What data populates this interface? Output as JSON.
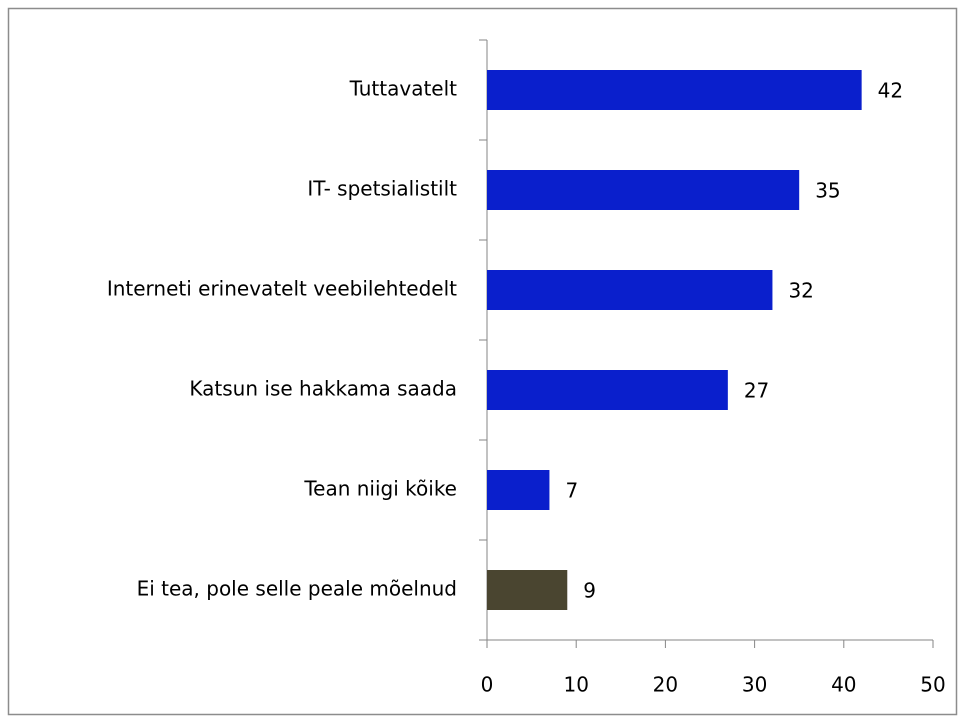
{
  "chart_data": {
    "type": "hbar",
    "categories": [
      "Tuttavatelt",
      "IT- spetsialistilt",
      "Interneti erinevatelt veebilehtedelt",
      "Katsun ise hakkama saada",
      "Tean niigi kõike",
      "Ei tea, pole selle peale mõelnud"
    ],
    "values": [
      42,
      35,
      32,
      27,
      7,
      9
    ],
    "colors": [
      "#0a1fcc",
      "#0a1fcc",
      "#0a1fcc",
      "#0a1fcc",
      "#0a1fcc",
      "#4a4530"
    ],
    "xlim": [
      0,
      50
    ],
    "xticks": [
      0,
      10,
      20,
      30,
      40,
      50
    ],
    "grid": false
  }
}
